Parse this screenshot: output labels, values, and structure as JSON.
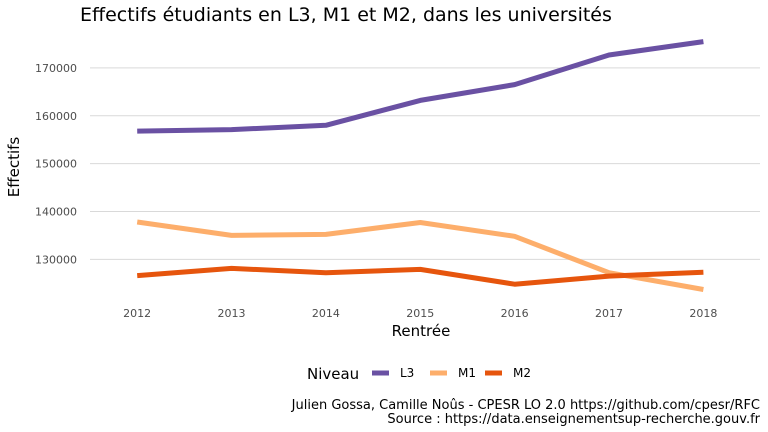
{
  "chart_data": {
    "type": "line",
    "title": "Effectifs étudiants en L3, M1 et M2, dans les universités",
    "xlabel": "Rentrée",
    "ylabel": "Effectifs",
    "x": [
      2012,
      2013,
      2014,
      2015,
      2016,
      2017,
      2018
    ],
    "x_tick_labels": [
      "2012",
      "2013",
      "2014",
      "2015",
      "2016",
      "2017",
      "2018"
    ],
    "y_ticks": [
      130000,
      140000,
      150000,
      160000,
      170000
    ],
    "y_tick_labels": [
      "130000",
      "140000",
      "150000",
      "160000",
      "170000"
    ],
    "xlim": [
      2011.5,
      2018.6
    ],
    "ylim": [
      121500,
      177500
    ],
    "grid": true,
    "legend": {
      "title": "Niveau",
      "position": "bottom"
    },
    "series": [
      {
        "name": "L3",
        "color": "#6a51a3",
        "values": [
          156800,
          157100,
          158000,
          163200,
          166500,
          172700,
          175500
        ]
      },
      {
        "name": "M1",
        "color": "#fdae6b",
        "values": [
          137800,
          135000,
          135200,
          137700,
          134800,
          127200,
          123700
        ]
      },
      {
        "name": "M2",
        "color": "#e6550d",
        "values": [
          126600,
          128100,
          127200,
          127900,
          124800,
          126500,
          127300
        ]
      }
    ],
    "caption": [
      "Julien Gossa, Camille Noûs - CPESR LO 2.0 https://github.com/cpesr/RFC",
      "Source : https://data.enseignementsup-recherche.gouv.fr"
    ]
  }
}
